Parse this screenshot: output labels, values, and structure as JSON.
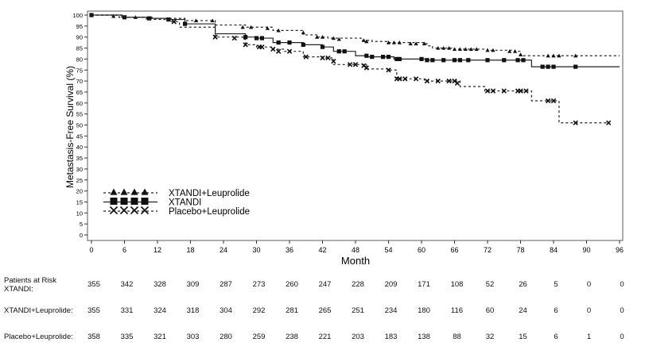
{
  "chart_data": {
    "type": "line",
    "subtype": "kaplan-meier",
    "xlabel": "Month",
    "ylabel": "Metastasis-Free Survival (%)",
    "xlim": [
      0,
      96
    ],
    "ylim": [
      0,
      100
    ],
    "xticks": [
      0,
      6,
      12,
      18,
      24,
      30,
      36,
      42,
      48,
      54,
      60,
      66,
      72,
      78,
      84,
      90,
      96
    ],
    "yticks": [
      0,
      5,
      10,
      15,
      20,
      25,
      30,
      35,
      40,
      45,
      50,
      55,
      60,
      65,
      70,
      75,
      80,
      85,
      90,
      95,
      100
    ],
    "grid": false,
    "legend_position": "bottom-left",
    "series": [
      {
        "name": "XTANDI+Leuprolide",
        "marker": "triangle",
        "line": "dashed",
        "steps": [
          [
            0,
            100
          ],
          [
            5,
            99
          ],
          [
            10,
            98.5
          ],
          [
            17,
            97.5
          ],
          [
            22.5,
            95.5
          ],
          [
            28,
            94.5
          ],
          [
            33,
            93
          ],
          [
            38.5,
            91
          ],
          [
            41,
            90
          ],
          [
            43,
            89.5
          ],
          [
            49,
            88.5
          ],
          [
            51,
            88
          ],
          [
            54,
            87.5
          ],
          [
            60.5,
            87
          ],
          [
            61,
            86
          ],
          [
            62,
            85
          ],
          [
            66,
            84.5
          ],
          [
            72,
            84
          ],
          [
            77,
            83.5
          ],
          [
            78,
            82
          ],
          [
            78.5,
            81.5
          ],
          [
            96,
            81.5
          ]
        ],
        "censored": [
          [
            4,
            99.5
          ],
          [
            8,
            99
          ],
          [
            14,
            98
          ],
          [
            19,
            97.5
          ],
          [
            22,
            97.5
          ],
          [
            27.5,
            94.5
          ],
          [
            29,
            94.5
          ],
          [
            32,
            94
          ],
          [
            34,
            93
          ],
          [
            38.5,
            92
          ],
          [
            41,
            90
          ],
          [
            42,
            90
          ],
          [
            44,
            89.5
          ],
          [
            45,
            89
          ],
          [
            49.5,
            88.5
          ],
          [
            50,
            88
          ],
          [
            54,
            87.5
          ],
          [
            55,
            87.5
          ],
          [
            56,
            87.5
          ],
          [
            58,
            87
          ],
          [
            59,
            87
          ],
          [
            60.5,
            87
          ],
          [
            63,
            85
          ],
          [
            64,
            85
          ],
          [
            65,
            85
          ],
          [
            66,
            84.5
          ],
          [
            67,
            84.5
          ],
          [
            68,
            84.5
          ],
          [
            69,
            84.5
          ],
          [
            70,
            84.5
          ],
          [
            72,
            84
          ],
          [
            73,
            84
          ],
          [
            76,
            83.5
          ],
          [
            77,
            83.5
          ],
          [
            78,
            82
          ],
          [
            83,
            81.5
          ],
          [
            84,
            81.5
          ],
          [
            85,
            81.5
          ],
          [
            88,
            81.5
          ]
        ]
      },
      {
        "name": "XTANDI",
        "marker": "square",
        "line": "solid",
        "steps": [
          [
            0,
            100
          ],
          [
            5.5,
            99
          ],
          [
            11,
            98.5
          ],
          [
            14,
            98
          ],
          [
            17,
            96
          ],
          [
            22.5,
            91.5
          ],
          [
            28,
            90
          ],
          [
            30,
            89.5
          ],
          [
            33,
            87.5
          ],
          [
            38.5,
            86.5
          ],
          [
            42,
            85.5
          ],
          [
            44,
            83.5
          ],
          [
            48,
            81.5
          ],
          [
            50,
            81
          ],
          [
            55,
            80
          ],
          [
            61,
            79.5
          ],
          [
            80,
            76.5
          ],
          [
            96,
            76.5
          ]
        ],
        "censored": [
          [
            0,
            100
          ],
          [
            6,
            99
          ],
          [
            10.5,
            98.5
          ],
          [
            14,
            98
          ],
          [
            17,
            96
          ],
          [
            28,
            90
          ],
          [
            30,
            89.5
          ],
          [
            31,
            89.5
          ],
          [
            34,
            87.5
          ],
          [
            36,
            87.5
          ],
          [
            38.5,
            86.5
          ],
          [
            42,
            85.5
          ],
          [
            45,
            83.5
          ],
          [
            46,
            83.5
          ],
          [
            50,
            81.5
          ],
          [
            51,
            81
          ],
          [
            53,
            81
          ],
          [
            54,
            81
          ],
          [
            55.5,
            80
          ],
          [
            56,
            80
          ],
          [
            60,
            80
          ],
          [
            61,
            79.5
          ],
          [
            62,
            79.5
          ],
          [
            64,
            79.5
          ],
          [
            66,
            79.5
          ],
          [
            67,
            79.5
          ],
          [
            68.5,
            79.5
          ],
          [
            72,
            79.5
          ],
          [
            75,
            79.5
          ],
          [
            77.5,
            79.5
          ],
          [
            78.5,
            79.5
          ],
          [
            82,
            76.5
          ],
          [
            83,
            76.5
          ],
          [
            84,
            76.5
          ],
          [
            88,
            76.5
          ]
        ]
      },
      {
        "name": "Placebo+Leuprolide",
        "marker": "x",
        "line": "dashed",
        "steps": [
          [
            0,
            100
          ],
          [
            6,
            99
          ],
          [
            10,
            98
          ],
          [
            14,
            97
          ],
          [
            16,
            94.5
          ],
          [
            22.5,
            90
          ],
          [
            27.5,
            89
          ],
          [
            28,
            86.5
          ],
          [
            30,
            85.5
          ],
          [
            33,
            84.5
          ],
          [
            35,
            83.5
          ],
          [
            38.5,
            81
          ],
          [
            42,
            80.5
          ],
          [
            44,
            77.5
          ],
          [
            50,
            75.5
          ],
          [
            54,
            75
          ],
          [
            55.5,
            71
          ],
          [
            60.5,
            70
          ],
          [
            67,
            67.5
          ],
          [
            71.5,
            65.5
          ],
          [
            80,
            61
          ],
          [
            85,
            51
          ],
          [
            94,
            51
          ]
        ],
        "censored": [
          [
            15,
            97
          ],
          [
            22.5,
            90
          ],
          [
            26,
            89.5
          ],
          [
            28,
            86.5
          ],
          [
            30.5,
            85.5
          ],
          [
            31,
            85.5
          ],
          [
            33,
            84.5
          ],
          [
            34,
            83.5
          ],
          [
            36,
            83.5
          ],
          [
            39,
            81
          ],
          [
            42,
            80.5
          ],
          [
            43,
            80.5
          ],
          [
            44,
            79
          ],
          [
            47,
            77.5
          ],
          [
            48,
            77.5
          ],
          [
            49.5,
            77
          ],
          [
            50,
            76
          ],
          [
            54,
            75
          ],
          [
            55.5,
            71
          ],
          [
            56,
            71
          ],
          [
            57,
            71
          ],
          [
            59,
            71
          ],
          [
            61,
            70
          ],
          [
            63,
            70
          ],
          [
            65,
            70
          ],
          [
            66,
            70
          ],
          [
            66.5,
            69
          ],
          [
            72,
            65.5
          ],
          [
            73,
            65.5
          ],
          [
            75,
            65.5
          ],
          [
            77.5,
            65.5
          ],
          [
            78,
            65.5
          ],
          [
            79,
            65.5
          ],
          [
            83,
            61
          ],
          [
            84,
            61
          ],
          [
            88,
            51
          ],
          [
            94,
            51
          ]
        ]
      }
    ]
  },
  "risk_table": {
    "title": "Patients at Risk",
    "rows": [
      {
        "label": "XTANDI:",
        "values": [
          "355",
          "342",
          "328",
          "309",
          "287",
          "273",
          "260",
          "247",
          "228",
          "209",
          "171",
          "108",
          "52",
          "26",
          "5",
          "0",
          "0"
        ]
      },
      {
        "label": "XTANDI+Leuprolide:",
        "values": [
          "355",
          "331",
          "324",
          "318",
          "304",
          "292",
          "281",
          "265",
          "251",
          "234",
          "180",
          "116",
          "60",
          "24",
          "6",
          "0",
          "0"
        ]
      },
      {
        "label": "Placebo+Leuprolide:",
        "values": [
          "358",
          "335",
          "321",
          "303",
          "280",
          "259",
          "238",
          "221",
          "203",
          "183",
          "138",
          "88",
          "32",
          "15",
          "6",
          "1",
          "0"
        ]
      }
    ]
  }
}
